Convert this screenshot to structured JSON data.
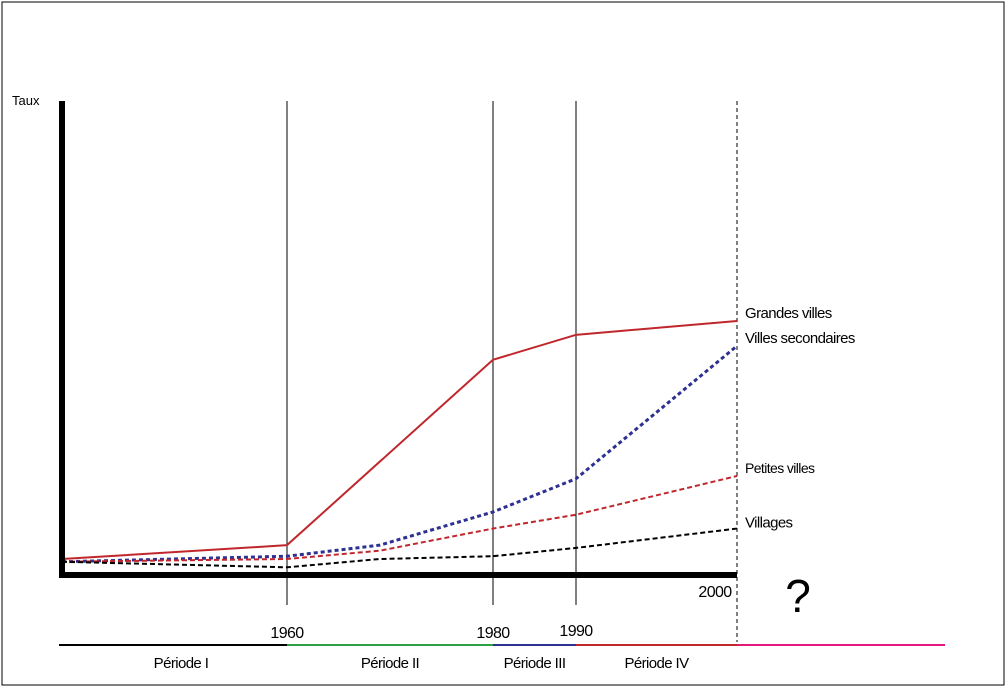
{
  "chart_data": {
    "type": "line",
    "title": "",
    "ylabel": "Taux",
    "xlabel": "",
    "x_ticks": [
      1960,
      1980,
      1990,
      2000
    ],
    "x_tick_labels": [
      "1960",
      "1980",
      "1990",
      "2000"
    ],
    "xlim": [
      1947,
      2000
    ],
    "ylim": [
      0,
      100
    ],
    "grid": false,
    "future_marker": "?",
    "series": [
      {
        "name": "Grandes villes",
        "color": "#c0272d",
        "dash": "solid",
        "x": [
          1947,
          1960,
          1980,
          1990,
          2000
        ],
        "y": [
          7,
          12,
          79,
          88,
          93
        ]
      },
      {
        "name": "Villes secondaires",
        "color": "#2e3192",
        "dash": "dotted",
        "x": [
          1947,
          1960,
          1969,
          1980,
          1990,
          2000
        ],
        "y": [
          6,
          8,
          12,
          24,
          36,
          84
        ]
      },
      {
        "name": "Petites villes",
        "color": "#c0272d",
        "dash": "dashed",
        "x": [
          1947,
          1960,
          1969,
          1980,
          1990,
          2000
        ],
        "y": [
          6,
          7,
          10,
          18,
          23,
          37
        ]
      },
      {
        "name": "Villages",
        "color": "#000000",
        "dash": "dashed",
        "x": [
          1947,
          1960,
          1969,
          1980,
          1990,
          2000
        ],
        "y": [
          6,
          4,
          7,
          8,
          11,
          18
        ]
      }
    ],
    "periods": [
      {
        "label": "Période I",
        "color": "#000000",
        "x": [
          1947,
          1960
        ]
      },
      {
        "label": "Période II",
        "color": "#2e9e47",
        "x": [
          1960,
          1980
        ]
      },
      {
        "label": "Période III",
        "color": "#2e3192",
        "x": [
          1980,
          1990
        ]
      },
      {
        "label": "Période IV",
        "color": "#c0272d",
        "x": [
          1990,
          2000
        ]
      },
      {
        "label": "",
        "color": "#e6177d",
        "x": [
          2000,
          2012
        ]
      }
    ]
  }
}
